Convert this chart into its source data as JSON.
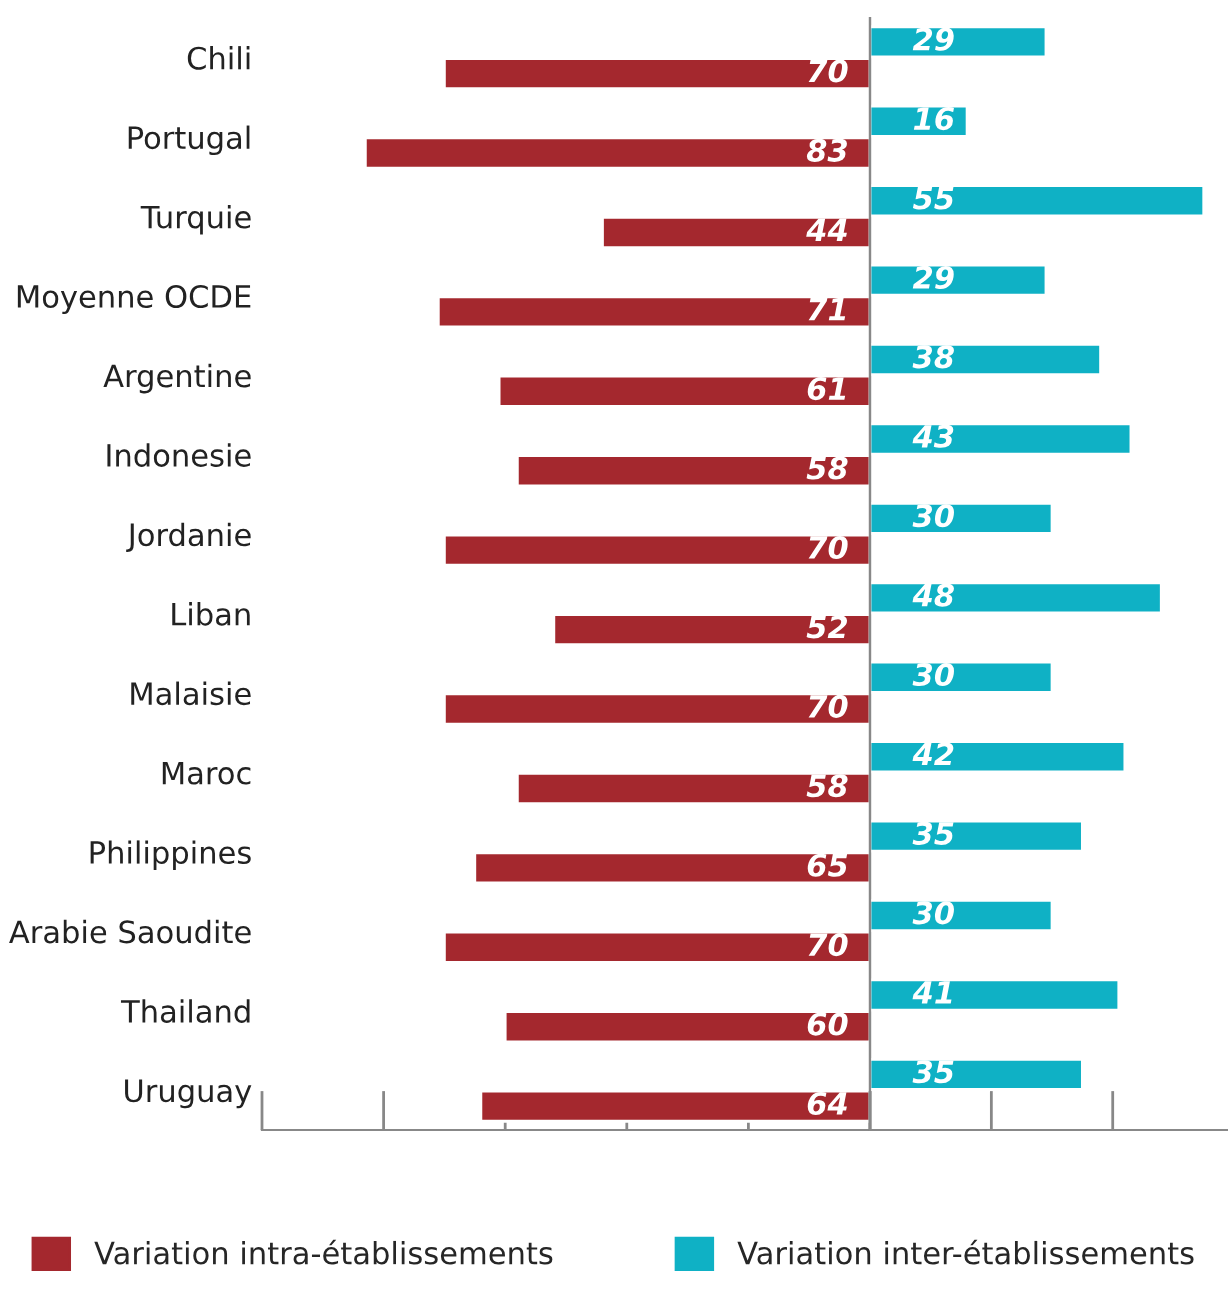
{
  "chart_data": [
    {
      "type": "bar",
      "orientation": "horizontal",
      "categories": [
        "Chili",
        "Portugal",
        "Turquie",
        "Moyenne OCDE",
        "Argentine",
        "Indonesie",
        "Jordanie",
        "Liban",
        "Malaisie",
        "Maroc",
        "Philippines",
        "Arabie Saoudite",
        "Thailand",
        "Uruguay"
      ],
      "series": [
        {
          "name": "Variation intra-établissements",
          "color": "#a4282e",
          "values": [
            70,
            83,
            44,
            71,
            61,
            58,
            70,
            52,
            70,
            58,
            65,
            70,
            60,
            64
          ]
        }
      ],
      "xlim": [
        100,
        0
      ],
      "data_labels": true,
      "tick_labels": "y",
      "legend": "bottom"
    },
    {
      "type": "bar",
      "orientation": "horizontal",
      "categories": [
        null,
        null,
        null,
        null,
        null,
        null,
        null,
        null,
        null,
        null,
        null,
        null,
        null,
        null
      ],
      "series": [
        {
          "name": "Variation inter-établissements",
          "color": "#0fb1c5",
          "values": [
            29,
            16,
            55,
            29,
            38,
            43,
            30,
            48,
            30,
            42,
            35,
            30,
            41,
            35
          ]
        }
      ],
      "xlim": [
        0,
        59
      ],
      "data_labels": true,
      "tick_labels": false,
      "legend": "bottom"
    }
  ]
}
